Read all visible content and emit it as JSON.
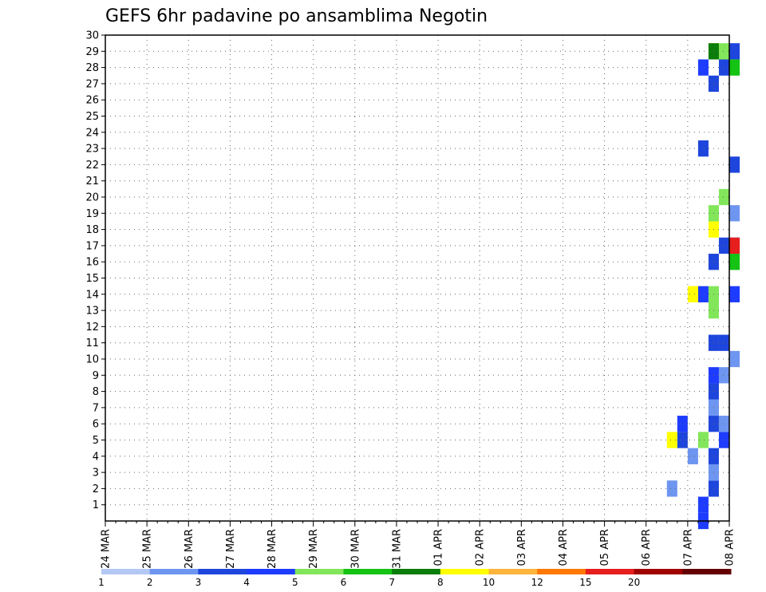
{
  "chart_data": {
    "type": "heatmap",
    "title": "GEFS 6hr padavine po ansamblima Negotin",
    "xlabel": "",
    "ylabel": "",
    "x_tick_labels": [
      "24 MAR",
      "25 MAR",
      "26 MAR",
      "27 MAR",
      "28 MAR",
      "29 MAR",
      "30 MAR",
      "31 MAR",
      "01 APR",
      "02 APR",
      "03 APR",
      "04 APR",
      "05 APR",
      "06 APR",
      "07 APR",
      "08 APR"
    ],
    "y_tick_labels": [
      "1",
      "2",
      "3",
      "4",
      "5",
      "6",
      "7",
      "8",
      "9",
      "10",
      "11",
      "12",
      "13",
      "14",
      "15",
      "16",
      "17",
      "18",
      "19",
      "20",
      "21",
      "22",
      "23",
      "24",
      "25",
      "26",
      "27",
      "28",
      "29",
      "30"
    ],
    "ylim": [
      0,
      30
    ],
    "grid": true,
    "color_levels": [
      "1",
      "2",
      "3",
      "4",
      "5",
      "6",
      "7",
      "8",
      "10",
      "12",
      "15",
      "20"
    ],
    "colors": [
      "#b4c8f5",
      "#6e96f0",
      "#1e46dc",
      "#1e3cff",
      "#82e65a",
      "#14c314",
      "#0a7d0a",
      "#ffff00",
      "#ffb43c",
      "#ff7800",
      "#e61e1e",
      "#a00000",
      "#640000"
    ],
    "cells": [
      [
        14.2,
        0,
        3
      ],
      [
        14.2,
        1,
        3
      ],
      [
        14.4,
        2,
        2
      ],
      [
        13.6,
        2,
        1
      ],
      [
        14.6,
        3,
        1
      ],
      [
        14.6,
        4,
        2
      ],
      [
        13.9,
        4,
        1
      ],
      [
        13.7,
        5,
        2
      ],
      [
        13.5,
        5,
        7
      ],
      [
        14.3,
        5,
        4
      ],
      [
        14.7,
        5,
        3
      ],
      [
        14.5,
        6,
        2
      ],
      [
        13.8,
        6,
        3
      ],
      [
        14.7,
        6,
        1
      ],
      [
        14.6,
        7,
        1
      ],
      [
        14.6,
        8,
        2
      ],
      [
        14.5,
        9,
        3
      ],
      [
        14.8,
        9,
        1
      ],
      [
        14.9,
        10,
        1
      ],
      [
        14.5,
        11,
        2
      ],
      [
        14.7,
        11,
        2
      ],
      [
        14.9,
        14,
        3
      ],
      [
        14.3,
        14,
        3
      ],
      [
        14.0,
        14,
        7
      ],
      [
        14.6,
        14,
        4
      ],
      [
        14.6,
        13,
        4
      ],
      [
        14.5,
        16,
        2
      ],
      [
        14.9,
        16,
        5
      ],
      [
        14.7,
        17,
        2
      ],
      [
        14.9,
        17,
        3
      ],
      [
        15.0,
        17,
        10
      ],
      [
        14.9,
        28,
        5
      ],
      [
        14.9,
        29,
        2
      ],
      [
        14.8,
        28,
        2
      ],
      [
        14.7,
        29,
        4
      ],
      [
        14.6,
        29,
        7
      ],
      [
        14.4,
        29,
        6
      ],
      [
        14.3,
        28,
        3
      ],
      [
        14.6,
        27,
        2
      ],
      [
        14.8,
        20,
        4
      ],
      [
        14.9,
        19,
        1
      ],
      [
        14.9,
        22,
        2
      ],
      [
        14.6,
        18,
        7
      ],
      [
        14.5,
        19,
        4
      ],
      [
        14.3,
        23,
        2
      ]
    ],
    "colorbar_label": ""
  }
}
